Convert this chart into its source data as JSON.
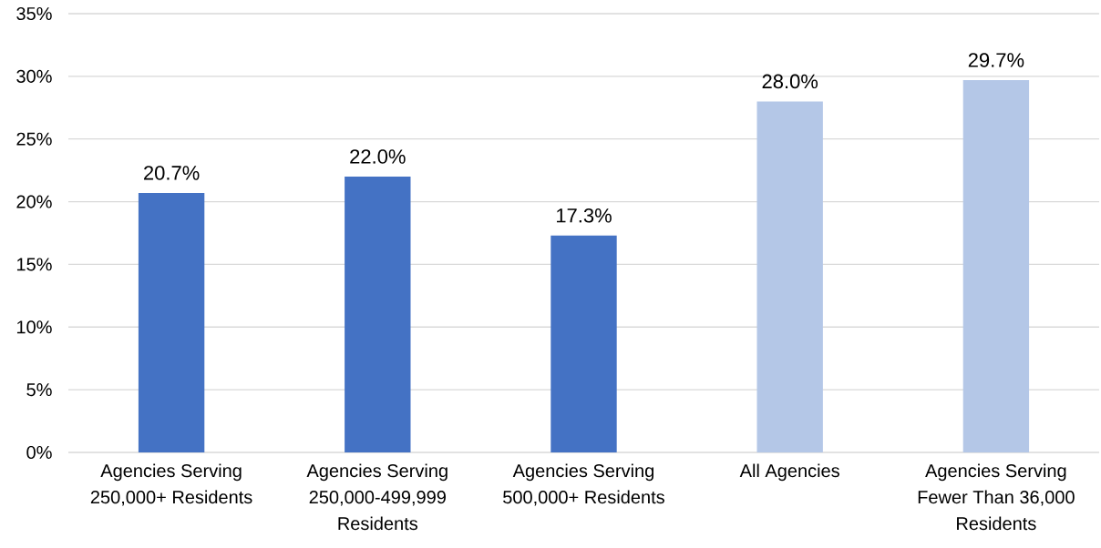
{
  "chart_data": {
    "type": "bar",
    "categories": [
      "Agencies Serving 250,000+ Residents",
      "Agencies Serving 250,000-499,999 Residents",
      "Agencies Serving 500,000+ Residents",
      "All Agencies",
      "Agencies Serving Fewer Than 36,000 Residents"
    ],
    "values": [
      20.7,
      22.0,
      17.3,
      28.0,
      29.7
    ],
    "colors": [
      "#4472c4",
      "#4472c4",
      "#4472c4",
      "#b4c7e7",
      "#b4c7e7"
    ],
    "value_labels": [
      "20.7%",
      "22.0%",
      "17.3%",
      "28.0%",
      "29.7%"
    ],
    "ylim": [
      0,
      35
    ],
    "yticks": [
      {
        "value": 0,
        "label": "0%"
      },
      {
        "value": 5,
        "label": "5%"
      },
      {
        "value": 10,
        "label": "10%"
      },
      {
        "value": 15,
        "label": "15%"
      },
      {
        "value": 20,
        "label": "20%"
      },
      {
        "value": 25,
        "label": "25%"
      },
      {
        "value": 30,
        "label": "30%"
      },
      {
        "value": 35,
        "label": "35%"
      }
    ],
    "grid": "y"
  }
}
